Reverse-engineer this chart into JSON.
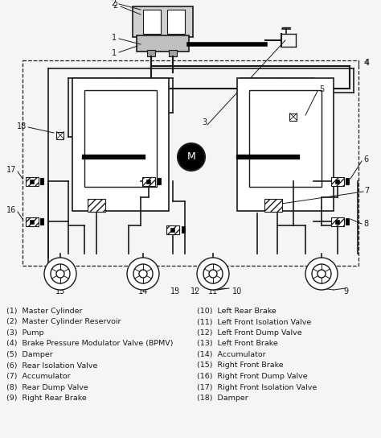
{
  "bg_color": "#f5f5f5",
  "line_color": "#1a1a1a",
  "legend_left": [
    "(1)  Master Cylinder",
    "(2)  Master Cylinder Reservoir",
    "(3)  Pump",
    "(4)  Brake Pressure Modulator Valve (BPMV)",
    "(5)  Damper",
    "(6)  Rear Isolation Valve",
    "(7)  Accumulator",
    "(8)  Rear Dump Valve",
    "(9)  Right Rear Brake"
  ],
  "legend_right": [
    "(10)  Left Rear Brake",
    "(11)  Left Front Isolation Valve",
    "(12)  Left Front Dump Valve",
    "(13)  Left Front Brake",
    "(14)  Accumulator",
    "(15)  Right Front Brake",
    "(16)  Right Front Dump Valve",
    "(17)  Right Front Isolation Valve",
    "(18)  Damper"
  ]
}
